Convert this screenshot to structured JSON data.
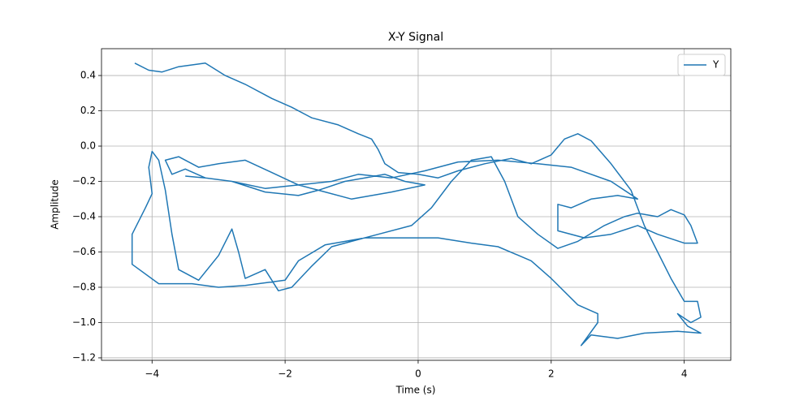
{
  "chart_data": {
    "type": "line",
    "title": "X-Y Signal",
    "x_label": "Time (s)",
    "y_label": "Amplitude",
    "x": [
      -4.26,
      -4.05,
      -3.85,
      -3.6,
      -3.2,
      -2.9,
      -2.6,
      -2.2,
      -1.9,
      -1.6,
      -1.2,
      -0.9,
      -0.7,
      -0.6,
      -0.5,
      -0.3,
      0,
      0.3,
      0.6,
      1.0,
      1.4,
      1.7,
      2.0,
      2.2,
      2.4,
      2.6,
      2.9,
      3.2,
      3.4,
      3.6,
      3.8,
      4.0,
      4.2,
      4.25,
      4.1,
      3.9,
      4.05,
      4.25,
      3.9,
      3.4,
      3.0,
      2.6,
      2.45,
      2.7,
      2.7,
      2.4,
      2.0,
      1.7,
      1.2,
      0.8,
      0.3,
      -0.3,
      -0.8,
      -1.4,
      -1.8,
      -2.0,
      -2.6,
      -3.0,
      -3.4,
      -3.9,
      -4.3,
      -4.3,
      -4.1,
      -4.0,
      -4.05,
      -4.0,
      -3.9,
      -3.8,
      -3.7,
      -3.6,
      -3.3,
      -3.0,
      -2.8,
      -2.7,
      -2.6,
      -2.3,
      -2.1,
      -1.9,
      -1.6,
      -1.3,
      -1.0,
      -0.6,
      -0.1,
      0.2,
      0.5,
      0.8,
      1.1,
      1.3,
      1.5,
      1.8,
      2.1,
      2.4,
      2.8,
      3.1,
      3.3,
      3.6,
      3.8,
      4.0,
      4.1,
      4.2,
      4.0,
      3.6,
      3.3,
      2.9,
      2.5,
      2.1,
      2.1,
      2.3,
      2.6,
      3.0,
      3.3,
      2.9,
      2.3,
      1.8,
      1.2,
      0.6,
      0.1,
      -0.4,
      -0.9,
      -1.3,
      -1.8,
      -2.2,
      -2.6,
      -3.0,
      -3.3,
      -3.6,
      -3.8,
      -3.7,
      -3.5,
      -3.2,
      -2.8,
      -2.3,
      -1.8,
      -1.5,
      -1.1,
      -0.8,
      -0.5,
      -0.2,
      0.1,
      -0.4,
      -1.0,
      -1.5,
      -1.8,
      -2.3,
      -2.8,
      -3.2,
      -3.5
    ],
    "series": [
      {
        "name": "Y",
        "color": "#1f77b4",
        "values": [
          0.47,
          0.43,
          0.42,
          0.45,
          0.47,
          0.4,
          0.35,
          0.27,
          0.22,
          0.16,
          0.12,
          0.07,
          0.04,
          -0.02,
          -0.1,
          -0.15,
          -0.16,
          -0.18,
          -0.14,
          -0.1,
          -0.07,
          -0.1,
          -0.05,
          0.04,
          0.07,
          0.03,
          -0.1,
          -0.25,
          -0.45,
          -0.6,
          -0.75,
          -0.88,
          -0.88,
          -0.97,
          -1.0,
          -0.95,
          -1.02,
          -1.06,
          -1.05,
          -1.06,
          -1.09,
          -1.07,
          -1.13,
          -1.0,
          -0.95,
          -0.9,
          -0.75,
          -0.65,
          -0.57,
          -0.55,
          -0.52,
          -0.52,
          -0.52,
          -0.56,
          -0.65,
          -0.76,
          -0.79,
          -0.8,
          -0.78,
          -0.78,
          -0.67,
          -0.5,
          -0.35,
          -0.27,
          -0.12,
          -0.03,
          -0.08,
          -0.25,
          -0.5,
          -0.7,
          -0.76,
          -0.62,
          -0.47,
          -0.6,
          -0.75,
          -0.7,
          -0.82,
          -0.8,
          -0.68,
          -0.57,
          -0.54,
          -0.5,
          -0.45,
          -0.35,
          -0.2,
          -0.08,
          -0.06,
          -0.2,
          -0.4,
          -0.5,
          -0.58,
          -0.54,
          -0.45,
          -0.4,
          -0.38,
          -0.4,
          -0.36,
          -0.39,
          -0.45,
          -0.55,
          -0.55,
          -0.5,
          -0.45,
          -0.5,
          -0.52,
          -0.48,
          -0.33,
          -0.35,
          -0.3,
          -0.28,
          -0.3,
          -0.2,
          -0.12,
          -0.1,
          -0.08,
          -0.09,
          -0.14,
          -0.18,
          -0.16,
          -0.2,
          -0.22,
          -0.15,
          -0.08,
          -0.1,
          -0.12,
          -0.06,
          -0.08,
          -0.16,
          -0.13,
          -0.18,
          -0.2,
          -0.26,
          -0.28,
          -0.25,
          -0.2,
          -0.18,
          -0.16,
          -0.2,
          -0.22,
          -0.26,
          -0.3,
          -0.25,
          -0.22,
          -0.24,
          -0.2,
          -0.18,
          -0.17
        ]
      }
    ],
    "xlim": [
      -4.76,
      4.7
    ],
    "ylim": [
      -1.214,
      0.552
    ],
    "xticks": [
      {
        "value": -4,
        "label": "−4"
      },
      {
        "value": -2,
        "label": "−2"
      },
      0,
      2,
      4
    ],
    "yticks": [
      {
        "value": -1.2,
        "label": "−1.2"
      },
      {
        "value": -1.0,
        "label": "−1.0"
      },
      {
        "value": -0.8,
        "label": "−0.8"
      },
      {
        "value": -0.6,
        "label": "−0.6"
      },
      {
        "value": -0.4,
        "label": "−0.4"
      },
      {
        "value": -0.2,
        "label": "−0.2"
      },
      {
        "value": 0,
        "label": "0.0"
      },
      0.2,
      0.4
    ],
    "grid": true,
    "legend": "upper right"
  }
}
